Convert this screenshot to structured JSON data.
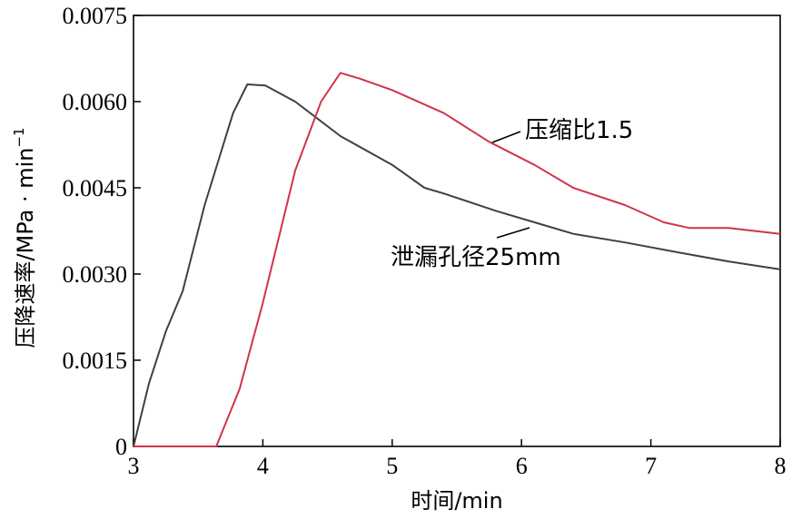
{
  "chart_data": {
    "type": "line",
    "title": "",
    "xlabel": "时间/min",
    "ylabel": "压降速率/MPa · min",
    "ylabel_superscript": "−1",
    "xlim": [
      3,
      8
    ],
    "ylim": [
      0,
      0.0075
    ],
    "x_ticks": [
      "3",
      "4",
      "5",
      "6",
      "7",
      "8"
    ],
    "y_ticks": [
      "0",
      "0.0015",
      "0.0030",
      "0.0045",
      "0.0060",
      "0.0075"
    ],
    "grid": false,
    "legend": "none",
    "series": [
      {
        "name": "泄漏孔径25mm",
        "color": "#404040",
        "x": [
          3.0,
          3.12,
          3.25,
          3.38,
          3.55,
          3.77,
          3.88,
          4.02,
          4.25,
          4.6,
          5.0,
          5.25,
          5.4,
          5.8,
          6.1,
          6.4,
          6.8,
          7.2,
          7.6,
          8.0
        ],
        "y": [
          0.0,
          0.0011,
          0.002,
          0.0027,
          0.0042,
          0.0058,
          0.0063,
          0.00628,
          0.006,
          0.0054,
          0.0049,
          0.0045,
          0.0044,
          0.0041,
          0.0039,
          0.0037,
          0.00355,
          0.00338,
          0.00322,
          0.00308
        ]
      },
      {
        "name": "压缩比1.5",
        "color": "#d0344a",
        "x": [
          3.0,
          3.64,
          3.82,
          4.0,
          4.25,
          4.45,
          4.6,
          4.75,
          5.0,
          5.4,
          5.75,
          6.1,
          6.4,
          6.8,
          7.1,
          7.3,
          7.6,
          8.0
        ],
        "y": [
          0.0,
          0.0,
          0.001,
          0.0025,
          0.0048,
          0.006,
          0.0065,
          0.0064,
          0.0062,
          0.0058,
          0.0053,
          0.0049,
          0.0045,
          0.0042,
          0.0039,
          0.0038,
          0.0038,
          0.0037
        ]
      }
    ],
    "annotations": [
      {
        "text": "压缩比1.5",
        "series": "压缩比1.5"
      },
      {
        "text": "泄漏孔径25mm",
        "series": "泄漏孔径25mm"
      }
    ]
  }
}
